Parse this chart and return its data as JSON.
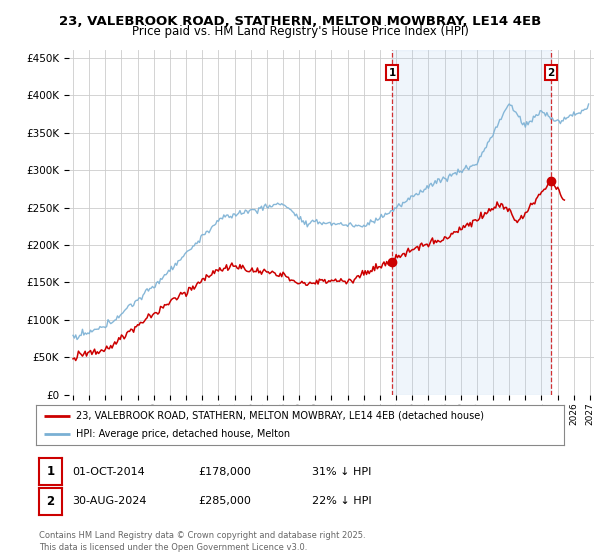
{
  "title": "23, VALEBROOK ROAD, STATHERN, MELTON MOWBRAY, LE14 4EB",
  "subtitle": "Price paid vs. HM Land Registry's House Price Index (HPI)",
  "legend_red": "23, VALEBROOK ROAD, STATHERN, MELTON MOWBRAY, LE14 4EB (detached house)",
  "legend_blue": "HPI: Average price, detached house, Melton",
  "annotation1_date": "01-OCT-2014",
  "annotation1_price": "£178,000",
  "annotation1_hpi": "31% ↓ HPI",
  "annotation2_date": "30-AUG-2024",
  "annotation2_price": "£285,000",
  "annotation2_hpi": "22% ↓ HPI",
  "footer": "Contains HM Land Registry data © Crown copyright and database right 2025.\nThis data is licensed under the Open Government Licence v3.0.",
  "red_color": "#cc0000",
  "blue_color": "#7ab0d4",
  "shade_color": "#ddeeff",
  "annotation_color": "#cc0000",
  "bg_color": "#ffffff",
  "grid_color": "#cccccc",
  "ylim": [
    0,
    460000
  ],
  "yticks": [
    0,
    50000,
    100000,
    150000,
    200000,
    250000,
    300000,
    350000,
    400000,
    450000
  ],
  "xlim_start": 1994.75,
  "xlim_end": 2027.25,
  "purchase1_year": 2014.75,
  "purchase1_price": 178000,
  "purchase2_year": 2024.583,
  "purchase2_price": 285000
}
